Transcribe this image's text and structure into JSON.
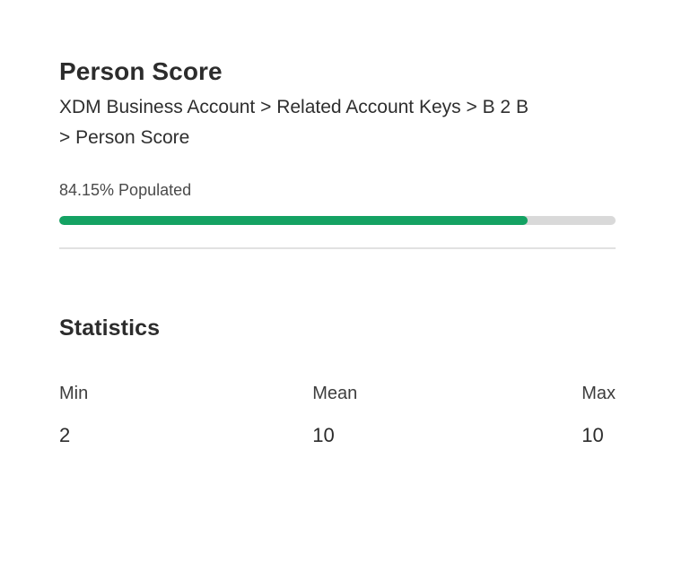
{
  "header": {
    "title": "Person Score",
    "path": "XDM Business Account > Related Account Keys > B 2 B\n> Person Score"
  },
  "populated": {
    "label": "84.15% Populated",
    "percent": 84.15
  },
  "statistics": {
    "heading": "Statistics",
    "items": [
      {
        "label": "Min",
        "value": "2"
      },
      {
        "label": "Mean",
        "value": "10"
      },
      {
        "label": "Max",
        "value": "10"
      }
    ]
  },
  "colors": {
    "progress_fill": "#14a263",
    "progress_track": "#d9d9d9"
  }
}
